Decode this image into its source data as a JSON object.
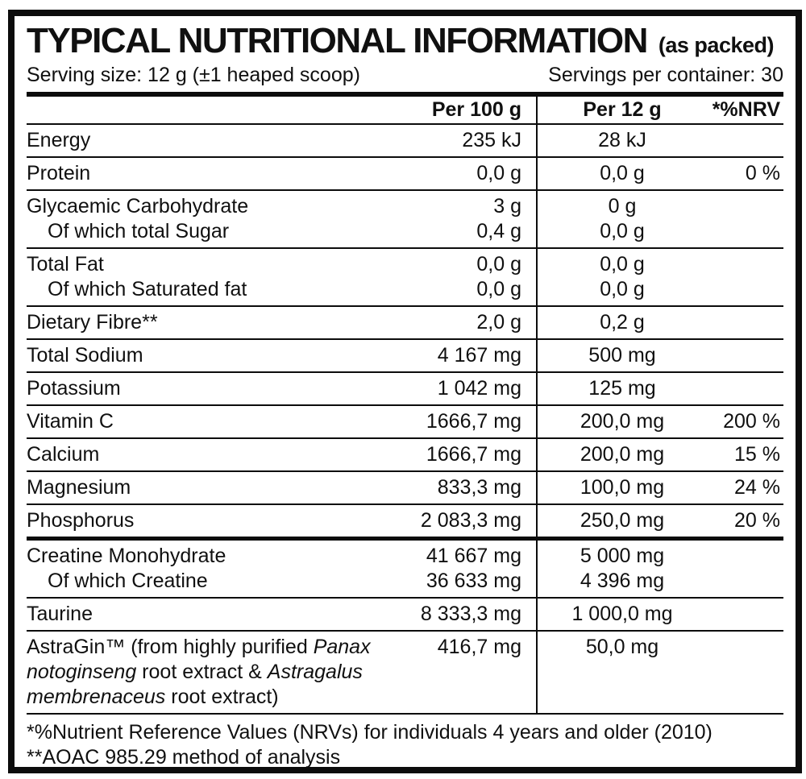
{
  "colors": {
    "ink": "#0c0c0c",
    "background": "#ffffff"
  },
  "header": {
    "title": "TYPICAL NUTRITIONAL INFORMATION",
    "title_suffix": "(as packed)",
    "serving_size": "Serving size: 12 g (±1 heaped scoop)",
    "servings_per_container": "Servings per container: 30"
  },
  "table": {
    "columns": {
      "per100": "Per 100 g",
      "per12": "Per 12 g",
      "nrv": "*%NRV"
    },
    "rows": [
      {
        "nrv": "",
        "lines": [
          {
            "label": "Energy",
            "per100": "235 kJ",
            "per12": "28 kJ"
          }
        ]
      },
      {
        "nrv": "0 %",
        "lines": [
          {
            "label": "Protein",
            "per100": "0,0 g",
            "per12": "0,0 g"
          }
        ]
      },
      {
        "nrv": "",
        "lines": [
          {
            "label": "Glycaemic Carbohydrate",
            "per100": "3 g",
            "per12": "0 g"
          },
          {
            "label": "Of which total Sugar",
            "indent": true,
            "per100": "0,4 g",
            "per12": "0,0 g"
          }
        ]
      },
      {
        "nrv": "",
        "lines": [
          {
            "label": "Total Fat",
            "per100": "0,0 g",
            "per12": "0,0 g"
          },
          {
            "label": "Of which Saturated fat",
            "indent": true,
            "per100": "0,0 g",
            "per12": "0,0 g"
          }
        ]
      },
      {
        "nrv": "",
        "lines": [
          {
            "label": "Dietary Fibre**",
            "per100": "2,0 g",
            "per12": "0,2 g"
          }
        ]
      },
      {
        "nrv": "",
        "lines": [
          {
            "label": "Total Sodium",
            "per100": "4 167 mg",
            "per12": "500 mg"
          }
        ]
      },
      {
        "nrv": "",
        "lines": [
          {
            "label": "Potassium",
            "per100": "1 042 mg",
            "per12": "125 mg"
          }
        ]
      },
      {
        "nrv": "200 %",
        "lines": [
          {
            "label": "Vitamin C",
            "per100": "1666,7 mg",
            "per12": "200,0 mg"
          }
        ]
      },
      {
        "nrv": "15 %",
        "lines": [
          {
            "label": "Calcium",
            "per100": "1666,7 mg",
            "per12": "200,0 mg"
          }
        ]
      },
      {
        "nrv": "24 %",
        "lines": [
          {
            "label": "Magnesium",
            "per100": "833,3 mg",
            "per12": "100,0 mg"
          }
        ]
      },
      {
        "nrv": "20 %",
        "lines": [
          {
            "label": "Phosphorus",
            "per100": "2 083,3 mg",
            "per12": "250,0 mg"
          }
        ]
      },
      {
        "section_break": true,
        "nrv": "",
        "lines": [
          {
            "label": "Creatine Monohydrate",
            "per100": "41 667 mg",
            "per12": "5 000 mg"
          },
          {
            "label": "Of which Creatine",
            "indent": true,
            "per100": "36 633 mg",
            "per12": "4 396 mg"
          }
        ]
      },
      {
        "nrv": "",
        "lines": [
          {
            "label": "Taurine",
            "per100": "8 333,3 mg",
            "per12": "1 000,0 mg"
          }
        ]
      },
      {
        "nrv": "",
        "lines": [
          {
            "label": [
              {
                "t": "AstraGin™ (from highly purified "
              },
              {
                "t": "Panax",
                "i": true
              }
            ],
            "per100": "416,7 mg",
            "per12": "50,0 mg"
          },
          {
            "label": [
              {
                "t": "notoginseng",
                "i": true
              },
              {
                "t": " root extract & "
              },
              {
                "t": "Astragalus",
                "i": true
              }
            ]
          },
          {
            "label": [
              {
                "t": "membrenaceus",
                "i": true
              },
              {
                "t": " root extract)"
              }
            ]
          }
        ]
      }
    ]
  },
  "footnotes": [
    "*%Nutrient Reference Values (NRVs) for individuals 4 years and older (2010)",
    "**AOAC 985.29 method of analysis"
  ]
}
